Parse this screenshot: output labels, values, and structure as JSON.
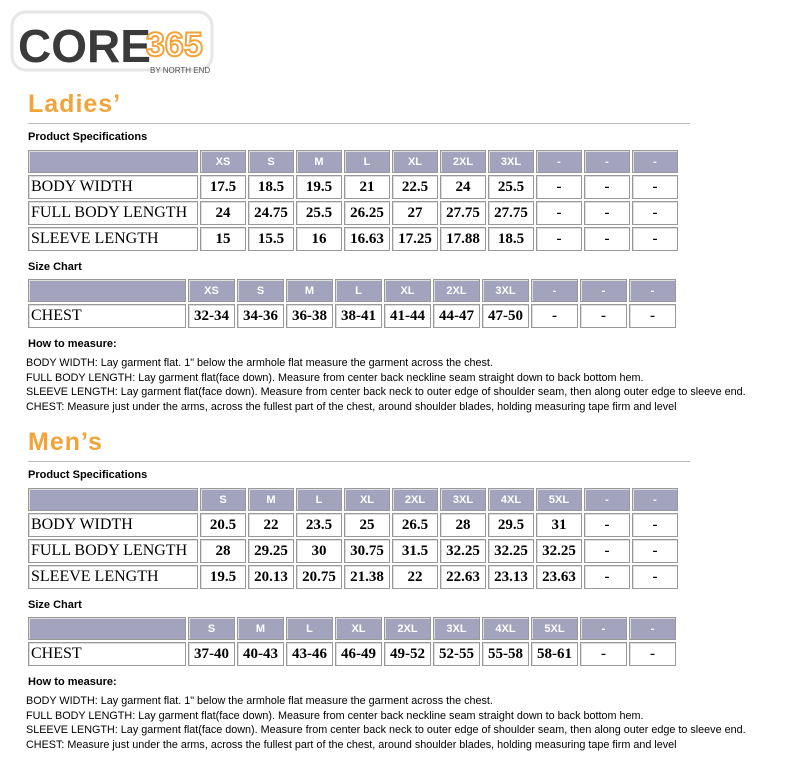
{
  "logo": {
    "brand": "CORE",
    "number": "365",
    "tagline": "BY NORTH END"
  },
  "sections": [
    {
      "title": "Ladies’",
      "spec_label": "Product Specifications",
      "spec_table": {
        "header": [
          "XS",
          "S",
          "M",
          "L",
          "XL",
          "2XL",
          "3XL",
          "-",
          "-",
          "-"
        ],
        "rows": [
          [
            "BODY WIDTH",
            "17.5",
            "18.5",
            "19.5",
            "21",
            "22.5",
            "24",
            "25.5",
            "-",
            "-",
            "-"
          ],
          [
            "FULL BODY LENGTH",
            "24",
            "24.75",
            "25.5",
            "26.25",
            "27",
            "27.75",
            "27.75",
            "-",
            "-",
            "-"
          ],
          [
            "SLEEVE LENGTH",
            "15",
            "15.5",
            "16",
            "16.63",
            "17.25",
            "17.88",
            "18.5",
            "-",
            "-",
            "-"
          ]
        ]
      },
      "size_label": "Size Chart",
      "size_table": {
        "header": [
          "XS",
          "S",
          "M",
          "L",
          "XL",
          "2XL",
          "3XL",
          "-",
          "-",
          "-"
        ],
        "rows": [
          [
            "CHEST",
            "32-34",
            "34-36",
            "36-38",
            "38-41",
            "41-44",
            "44-47",
            "47-50",
            "-",
            "-",
            "-"
          ]
        ]
      },
      "measure_label": "How to measure:",
      "measure_notes": [
        "BODY WIDTH: Lay garment flat. 1\" below the armhole flat measure the garment across the chest.",
        "FULL BODY LENGTH: Lay garment flat(face down). Measure from center back neckline seam straight down to back bottom hem.",
        "SLEEVE LENGTH: Lay garment flat(face down). Measure from center back neck to outer edge of shoulder seam, then along outer edge to sleeve end.",
        "CHEST: Measure just under the arms, across the fullest part of the chest, around shoulder blades, holding measuring tape firm and level"
      ]
    },
    {
      "title": "Men’s",
      "spec_label": "Product Specifications",
      "spec_table": {
        "header": [
          "S",
          "M",
          "L",
          "XL",
          "2XL",
          "3XL",
          "4XL",
          "5XL",
          "-",
          "-"
        ],
        "rows": [
          [
            "BODY WIDTH",
            "20.5",
            "22",
            "23.5",
            "25",
            "26.5",
            "28",
            "29.5",
            "31",
            "-",
            "-"
          ],
          [
            "FULL BODY LENGTH",
            "28",
            "29.25",
            "30",
            "30.75",
            "31.5",
            "32.25",
            "32.25",
            "32.25",
            "-",
            "-"
          ],
          [
            "SLEEVE LENGTH",
            "19.5",
            "20.13",
            "20.75",
            "21.38",
            "22",
            "22.63",
            "23.13",
            "23.63",
            "-",
            "-"
          ]
        ]
      },
      "size_label": "Size Chart",
      "size_table": {
        "header": [
          "S",
          "M",
          "L",
          "XL",
          "2XL",
          "3XL",
          "4XL",
          "5XL",
          "-",
          "-"
        ],
        "rows": [
          [
            "CHEST",
            "37-40",
            "40-43",
            "43-46",
            "46-49",
            "49-52",
            "52-55",
            "55-58",
            "58-61",
            "-",
            "-"
          ]
        ]
      },
      "measure_label": "How to measure:",
      "measure_notes": [
        "BODY WIDTH: Lay garment flat. 1\" below the armhole flat measure the garment across the chest.",
        "FULL BODY LENGTH: Lay garment flat(face down). Measure from center back neckline seam straight down to back bottom hem.",
        "SLEEVE LENGTH: Lay garment flat(face down). Measure from center back neck to outer edge of shoulder seam, then along outer edge to sleeve end.",
        "CHEST: Measure just under the arms, across the fullest part of the chest, around shoulder blades, holding measuring tape firm and level"
      ]
    }
  ]
}
